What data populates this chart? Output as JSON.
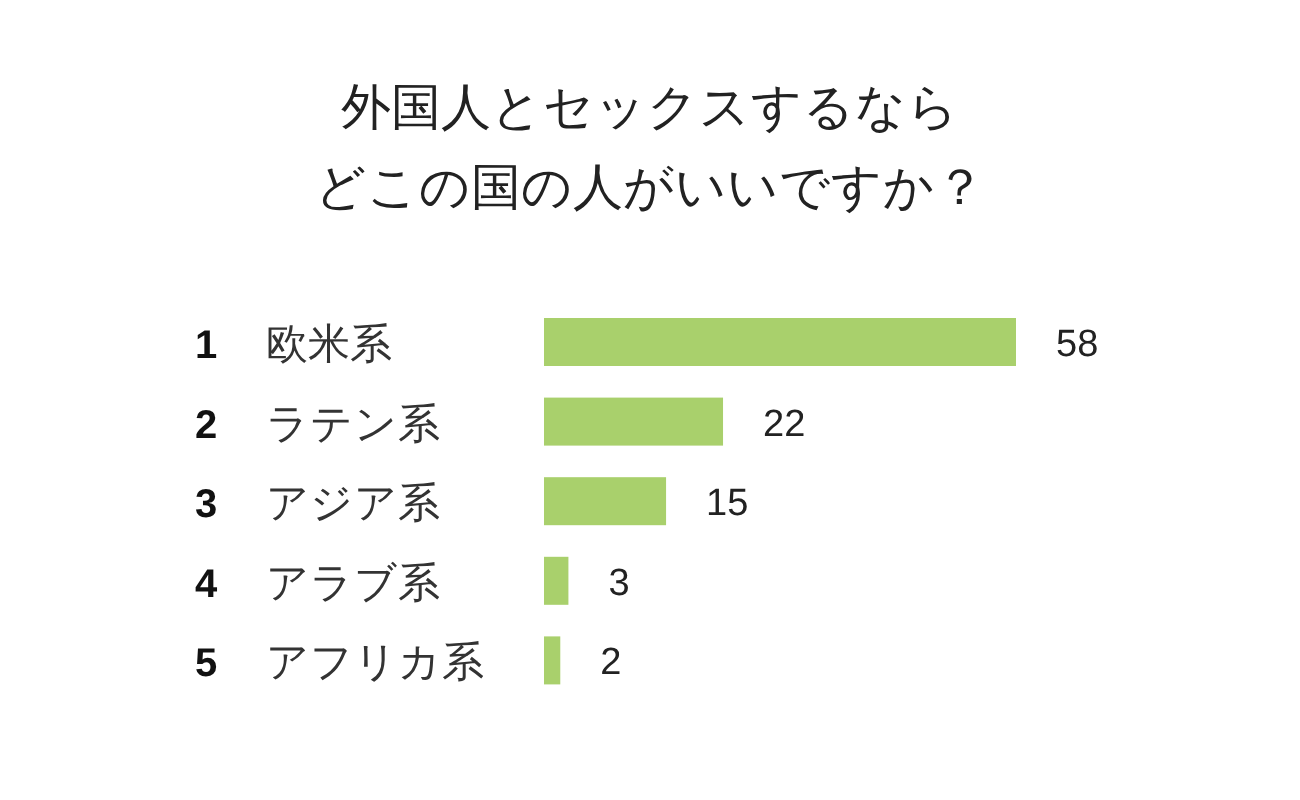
{
  "chart_data": {
    "type": "bar",
    "orientation": "horizontal",
    "title": "外国人とセックスするならどこの国の人がいいですか？",
    "categories": [
      "欧米系",
      "ラテン系",
      "アジア系",
      "アラブ系",
      "アフリカ系"
    ],
    "annotations": [
      "1",
      "2",
      "3",
      "4",
      "5"
    ],
    "values": [
      58,
      22,
      15,
      3,
      2
    ],
    "color": "#a9d06c",
    "data_labels": true
  }
}
